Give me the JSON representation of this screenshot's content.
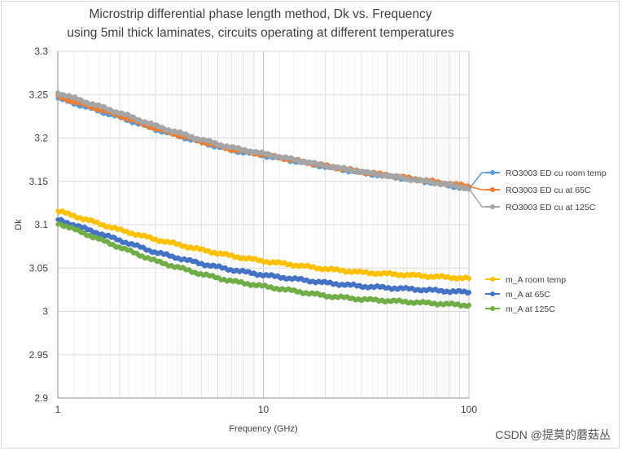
{
  "watermark": "CSDN @提莫的蘑菇丛",
  "chart_data": {
    "type": "line",
    "title": [
      "Microstrip differential phase length method, Dk vs. Frequency",
      "using 5mil thick laminates, circuits operating at different temperatures"
    ],
    "xlabel": "Frequency (GHz)",
    "ylabel": "Dk",
    "xscale": "log",
    "xlim": [
      1,
      100
    ],
    "ylim": [
      2.9,
      3.3
    ],
    "xticks": [
      1,
      10,
      100
    ],
    "xtick_labels": [
      "1",
      "10",
      "100"
    ],
    "yticks": [
      2.9,
      2.95,
      3.0,
      3.05,
      3.1,
      3.15,
      3.2,
      3.25,
      3.3
    ],
    "ytick_labels": [
      "2.9",
      "2.95",
      "3",
      "3.05",
      "3.1",
      "3.15",
      "3.2",
      "3.25",
      "3.3"
    ],
    "grid": true,
    "legend_position": "right",
    "series": [
      {
        "name": "RO3003 ED cu room temp",
        "color": "#5b9bd5",
        "x": [
          1,
          2,
          3,
          5,
          7,
          10,
          20,
          30,
          50,
          70,
          100
        ],
        "y": [
          3.246,
          3.224,
          3.21,
          3.195,
          3.186,
          3.18,
          3.167,
          3.16,
          3.153,
          3.148,
          3.141
        ]
      },
      {
        "name": "RO3003 ED cu at 65C",
        "color": "#ed7d31",
        "x": [
          1,
          2,
          3,
          5,
          7,
          10,
          20,
          30,
          50,
          70,
          100
        ],
        "y": [
          3.248,
          3.226,
          3.211,
          3.196,
          3.187,
          3.181,
          3.168,
          3.161,
          3.154,
          3.149,
          3.144
        ]
      },
      {
        "name": "RO3003 ED cu at 125C",
        "color": "#a5a5a5",
        "x": [
          1,
          2,
          3,
          5,
          7,
          10,
          20,
          30,
          50,
          70,
          100
        ],
        "y": [
          3.252,
          3.229,
          3.214,
          3.198,
          3.189,
          3.182,
          3.168,
          3.161,
          3.153,
          3.148,
          3.142
        ]
      },
      {
        "name": "m_A room temp",
        "color": "#ffc000",
        "x": [
          1,
          2,
          3,
          5,
          7,
          10,
          20,
          30,
          50,
          70,
          100
        ],
        "y": [
          3.116,
          3.094,
          3.083,
          3.071,
          3.064,
          3.058,
          3.049,
          3.045,
          3.042,
          3.04,
          3.038
        ]
      },
      {
        "name": "m_A at 65C",
        "color": "#4472c4",
        "x": [
          1,
          2,
          3,
          5,
          7,
          10,
          20,
          30,
          50,
          70,
          100
        ],
        "y": [
          3.106,
          3.082,
          3.068,
          3.055,
          3.048,
          3.042,
          3.033,
          3.029,
          3.026,
          3.024,
          3.022
        ]
      },
      {
        "name": "m_A at 125C",
        "color": "#70ad47",
        "x": [
          1,
          2,
          3,
          5,
          7,
          10,
          20,
          30,
          50,
          70,
          100
        ],
        "y": [
          3.102,
          3.074,
          3.058,
          3.043,
          3.035,
          3.029,
          3.018,
          3.014,
          3.011,
          3.009,
          3.007
        ]
      }
    ]
  }
}
